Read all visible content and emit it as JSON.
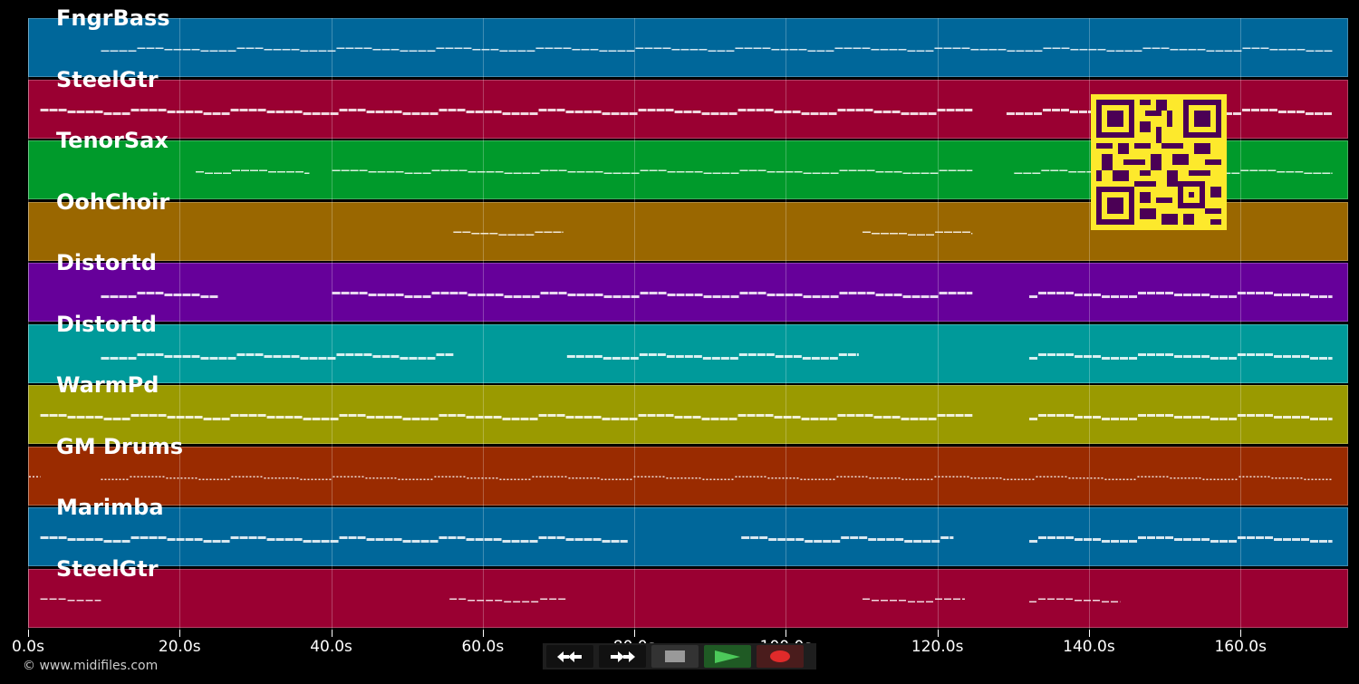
{
  "tracks": [
    {
      "label": "FngrBass",
      "color": "#00679a",
      "pattern": "wave"
    },
    {
      "label": "SteelGtr",
      "color": "#9a0032",
      "pattern": "bars"
    },
    {
      "label": "TenorSax",
      "color": "#009a2b",
      "pattern": "wave"
    },
    {
      "label": "OohChoir",
      "color": "#9a6700",
      "pattern": "short"
    },
    {
      "label": "Distortd",
      "color": "#66009a",
      "pattern": "bars"
    },
    {
      "label": "Distortd",
      "color": "#009a9a",
      "pattern": "bars"
    },
    {
      "label": "WarmPd",
      "color": "#9a9a00",
      "pattern": "bars"
    },
    {
      "label": "GM Drums",
      "color": "#9a2b00",
      "pattern": "dots"
    },
    {
      "label": "Marimba",
      "color": "#00679a",
      "pattern": "bars"
    },
    {
      "label": "SteelGtr",
      "color": "#9a0032",
      "pattern": "sparse"
    }
  ],
  "time_axis": {
    "ticks": [
      "0.0s",
      "20.0s",
      "40.0s",
      "60.0s",
      "80.0s",
      "100.0s",
      "120.0s",
      "140.0s",
      "160.0s"
    ],
    "max_seconds": 174.2
  },
  "copyright": "© www.midifiles.com",
  "controls": {
    "rewind": "rewind-icon",
    "fast_forward": "fast-forward-icon",
    "stop": "stop-icon",
    "play": "play-icon",
    "record": "record-icon"
  },
  "qr_code": {
    "fg": "#4b0055",
    "bg": "#fde92c"
  }
}
